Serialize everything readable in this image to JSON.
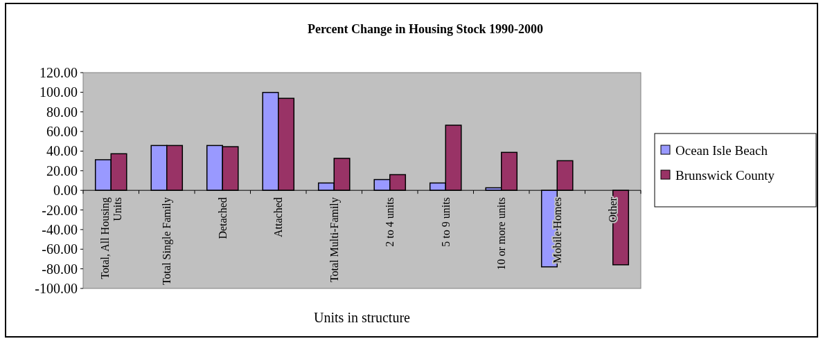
{
  "chart_data": {
    "type": "bar",
    "title": "Percent Change in Housing Stock 1990-2000",
    "xlabel": "Units in structure",
    "categories": [
      "Total, All Housing Units",
      "Total Single Family",
      "Detached",
      "Attached",
      "Total Multi-Family",
      "2 to 4 units",
      "5 to 9 units",
      "10 or more units",
      "Mobile Homes",
      "Other"
    ],
    "series": [
      {
        "name": "Ocean Isle Beach",
        "color": "#9999ff",
        "values": [
          31.2,
          45.7,
          45.7,
          99.8,
          7.5,
          11.0,
          7.5,
          2.6,
          -78.0,
          null
        ]
      },
      {
        "name": "Brunswick County",
        "color": "#993366",
        "values": [
          37.3,
          45.7,
          44.5,
          93.8,
          32.6,
          16.0,
          66.4,
          38.7,
          30.2,
          -75.9
        ]
      }
    ],
    "ylim": [
      -100,
      120
    ],
    "yticks": [
      {
        "value": -100,
        "label": "-100.00"
      },
      {
        "value": -80,
        "label": "-80.00"
      },
      {
        "value": -60,
        "label": "-60.00"
      },
      {
        "value": -40,
        "label": "-40.00"
      },
      {
        "value": -20,
        "label": "-20.00"
      },
      {
        "value": 0,
        "label": "0.00"
      },
      {
        "value": 20,
        "label": "20.00"
      },
      {
        "value": 40,
        "label": "40.00"
      },
      {
        "value": 60,
        "label": "60.00"
      },
      {
        "value": 80,
        "label": "80.00"
      },
      {
        "value": 100,
        "label": "100.00"
      },
      {
        "value": 120,
        "label": "120.00"
      }
    ],
    "legend": "right"
  }
}
